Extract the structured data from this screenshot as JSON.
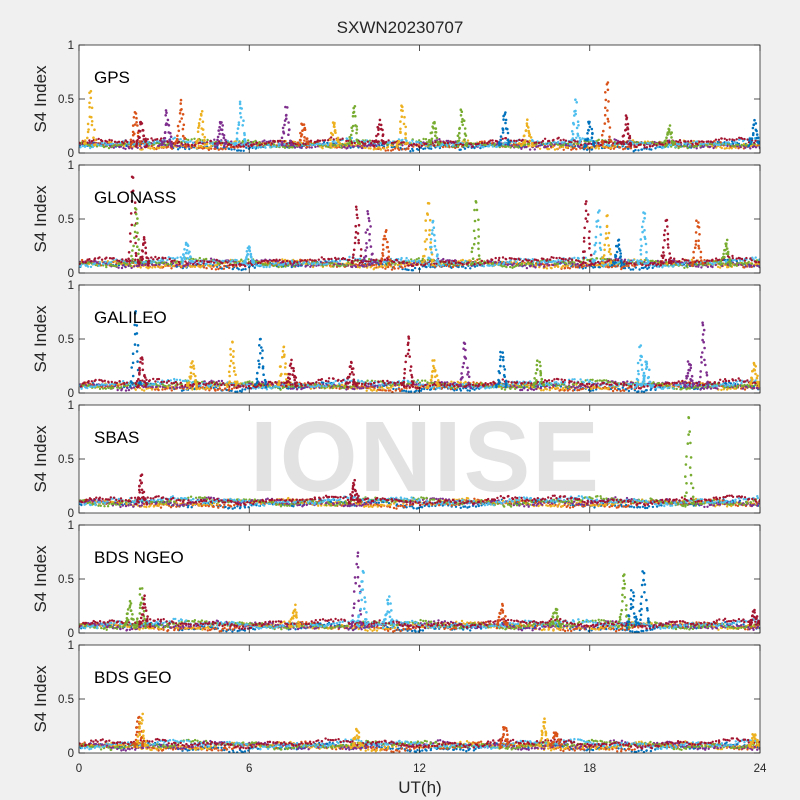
{
  "chart_data": {
    "type": "scatter",
    "title": "SXWN20230707",
    "xlabel": "UT(h)",
    "ylabel": "S4 Index",
    "xlim": [
      0,
      24
    ],
    "ylim": [
      0,
      1
    ],
    "x_ticks": [
      "0",
      "6",
      "12",
      "18",
      "24"
    ],
    "y_ticks": [
      "0",
      "0.5",
      "1"
    ],
    "watermark": "IONISE",
    "colors": [
      "#0072bd",
      "#d95319",
      "#edb120",
      "#7e2f8e",
      "#77ac30",
      "#4dbeee",
      "#a2142f"
    ],
    "panels": [
      {
        "name": "GPS",
        "baseline": 0.08,
        "spikes": [
          [
            0.4,
            0.6,
            2
          ],
          [
            2.0,
            0.4,
            1
          ],
          [
            2.2,
            0.3,
            6
          ],
          [
            3.1,
            0.4,
            3
          ],
          [
            3.6,
            0.5,
            1
          ],
          [
            4.3,
            0.4,
            2
          ],
          [
            5.0,
            0.3,
            3
          ],
          [
            5.7,
            0.5,
            5
          ],
          [
            7.3,
            0.45,
            3
          ],
          [
            7.9,
            0.3,
            1
          ],
          [
            9.0,
            0.3,
            2
          ],
          [
            9.7,
            0.45,
            4
          ],
          [
            10.6,
            0.3,
            6
          ],
          [
            11.4,
            0.48,
            2
          ],
          [
            12.5,
            0.3,
            4
          ],
          [
            13.5,
            0.4,
            4
          ],
          [
            15.0,
            0.4,
            0
          ],
          [
            15.8,
            0.3,
            2
          ],
          [
            17.5,
            0.5,
            5
          ],
          [
            18.0,
            0.3,
            0
          ],
          [
            18.6,
            0.7,
            1
          ],
          [
            19.3,
            0.35,
            6
          ],
          [
            20.8,
            0.25,
            4
          ],
          [
            23.8,
            0.3,
            0
          ]
        ]
      },
      {
        "name": "GLONASS",
        "baseline": 0.09,
        "spikes": [
          [
            1.9,
            0.95,
            6
          ],
          [
            2.0,
            0.65,
            4
          ],
          [
            2.3,
            0.35,
            6
          ],
          [
            3.8,
            0.3,
            5
          ],
          [
            6.0,
            0.25,
            5
          ],
          [
            9.8,
            0.65,
            6
          ],
          [
            10.2,
            0.6,
            3
          ],
          [
            10.8,
            0.4,
            1
          ],
          [
            12.3,
            0.68,
            2
          ],
          [
            12.5,
            0.5,
            5
          ],
          [
            14.0,
            0.7,
            4
          ],
          [
            17.9,
            0.7,
            6
          ],
          [
            18.3,
            0.6,
            5
          ],
          [
            18.6,
            0.55,
            2
          ],
          [
            19.0,
            0.3,
            0
          ],
          [
            19.9,
            0.6,
            5
          ],
          [
            20.7,
            0.5,
            6
          ],
          [
            21.8,
            0.5,
            1
          ],
          [
            22.8,
            0.3,
            4
          ]
        ]
      },
      {
        "name": "GALILEO",
        "baseline": 0.07,
        "spikes": [
          [
            2.0,
            0.8,
            0
          ],
          [
            2.2,
            0.35,
            6
          ],
          [
            4.0,
            0.3,
            2
          ],
          [
            5.4,
            0.5,
            2
          ],
          [
            6.4,
            0.55,
            0
          ],
          [
            7.2,
            0.45,
            2
          ],
          [
            7.5,
            0.3,
            6
          ],
          [
            9.6,
            0.3,
            6
          ],
          [
            11.6,
            0.55,
            6
          ],
          [
            12.5,
            0.3,
            2
          ],
          [
            13.6,
            0.5,
            3
          ],
          [
            14.9,
            0.4,
            0
          ],
          [
            16.2,
            0.3,
            4
          ],
          [
            19.8,
            0.45,
            5
          ],
          [
            20.0,
            0.3,
            5
          ],
          [
            21.5,
            0.3,
            3
          ],
          [
            22.0,
            0.7,
            3
          ],
          [
            23.8,
            0.28,
            2
          ]
        ]
      },
      {
        "name": "SBAS",
        "baseline": 0.1,
        "spikes": [
          [
            2.2,
            0.35,
            6
          ],
          [
            9.7,
            0.3,
            6
          ],
          [
            21.5,
            0.93,
            4
          ]
        ]
      },
      {
        "name": "BDS NGEO",
        "baseline": 0.07,
        "spikes": [
          [
            1.8,
            0.3,
            4
          ],
          [
            2.2,
            0.42,
            4
          ],
          [
            2.3,
            0.35,
            6
          ],
          [
            7.6,
            0.25,
            2
          ],
          [
            9.8,
            0.78,
            3
          ],
          [
            10.0,
            0.6,
            5
          ],
          [
            10.9,
            0.35,
            5
          ],
          [
            14.9,
            0.28,
            1
          ],
          [
            16.8,
            0.25,
            4
          ],
          [
            19.2,
            0.58,
            4
          ],
          [
            19.5,
            0.4,
            0
          ],
          [
            19.9,
            0.62,
            0
          ],
          [
            23.8,
            0.2,
            6
          ]
        ]
      },
      {
        "name": "BDS GEO",
        "baseline": 0.07,
        "spikes": [
          [
            2.1,
            0.35,
            1
          ],
          [
            2.2,
            0.37,
            2
          ],
          [
            9.8,
            0.22,
            2
          ],
          [
            15.0,
            0.25,
            1
          ],
          [
            16.4,
            0.32,
            2
          ],
          [
            16.8,
            0.2,
            1
          ],
          [
            23.8,
            0.18,
            2
          ]
        ]
      }
    ]
  }
}
